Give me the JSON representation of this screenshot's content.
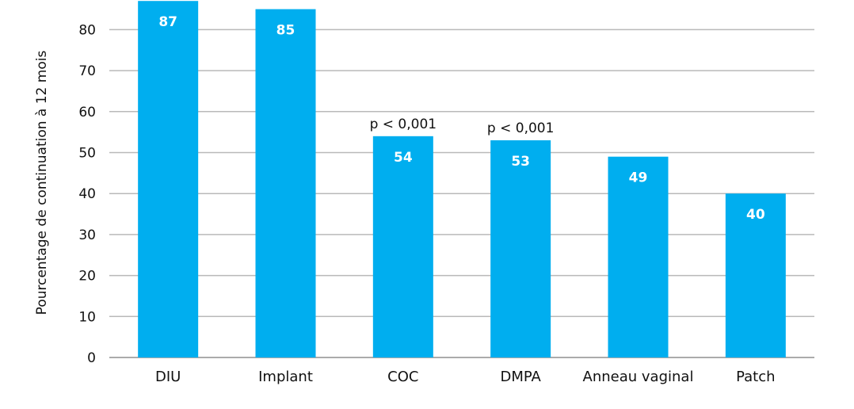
{
  "chart_data": {
    "type": "bar",
    "categories": [
      "DIU",
      "Implant",
      "COC",
      "DMPA",
      "Anneau vaginal",
      "Patch"
    ],
    "values": [
      87,
      85,
      54,
      53,
      49,
      40
    ],
    "value_labels": [
      "87",
      "85",
      "54",
      "53",
      "49",
      "40"
    ],
    "annotations": [
      "",
      "",
      "p < 0,001",
      "p < 0,001",
      "",
      ""
    ],
    "xlabel": "",
    "ylabel": "Pourcentage de continuation à 12 mois",
    "ylim": [
      0,
      87
    ],
    "yticks": [
      0,
      10,
      20,
      30,
      40,
      50,
      60,
      70,
      80
    ],
    "grid": true,
    "legend": "none",
    "colors": {
      "bar": "#00aeef",
      "grid": "#b9b9b9",
      "text": "#111111",
      "data_label": "#ffffff"
    }
  }
}
